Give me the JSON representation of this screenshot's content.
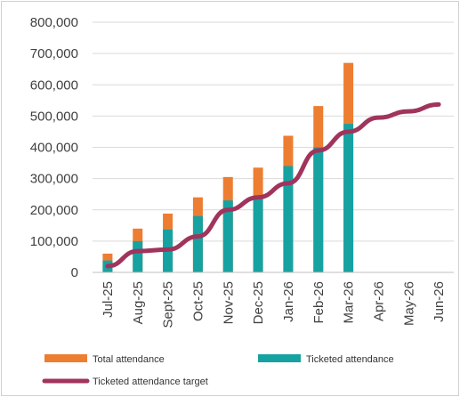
{
  "chart_data": {
    "type": "bar",
    "categories": [
      "Jul-25",
      "Aug-25",
      "Sept-25",
      "Oct-25",
      "Nov-25",
      "Dec-25",
      "Jan-26",
      "Feb-26",
      "Mar-26",
      "Apr-26",
      "May-26",
      "Jun-26"
    ],
    "ylim": [
      0,
      800000
    ],
    "yticks": [
      "0",
      "100,000",
      "200,000",
      "300,000",
      "400,000",
      "500,000",
      "600,000",
      "700,000",
      "800,000"
    ],
    "grid": true,
    "legend_position": "bottom",
    "series": [
      {
        "name": "Total attendance",
        "kind": "bar",
        "color": "#ed7d31",
        "values": [
          60000,
          140000,
          188000,
          240000,
          305000,
          335000,
          437000,
          532000,
          670000,
          null,
          null,
          null
        ]
      },
      {
        "name": "Ticketed attendance",
        "kind": "bar",
        "color": "#17a2a2",
        "values": [
          38000,
          100000,
          137000,
          180000,
          230000,
          243000,
          340000,
          400000,
          475000,
          null,
          null,
          null
        ]
      },
      {
        "name": "Ticketed attendance target",
        "kind": "line",
        "color": "#a0345c",
        "values": [
          20000,
          68000,
          73000,
          115000,
          200000,
          240000,
          285000,
          390000,
          450000,
          495000,
          515000,
          537000
        ]
      }
    ]
  }
}
